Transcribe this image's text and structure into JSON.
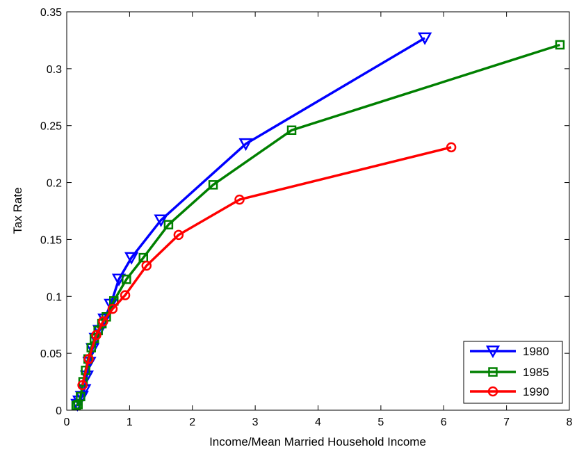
{
  "chart_data": {
    "type": "line",
    "title": "",
    "xlabel": "Income/Mean Married Household Income",
    "ylabel": "Tax Rate",
    "xlim": [
      0,
      8
    ],
    "ylim": [
      0,
      0.35
    ],
    "xticks": [
      0,
      1,
      2,
      3,
      4,
      5,
      6,
      7,
      8
    ],
    "yticks": [
      0,
      0.05,
      0.1,
      0.15,
      0.2,
      0.25,
      0.3,
      0.35
    ],
    "xtick_labels": [
      "0",
      "1",
      "2",
      "3",
      "4",
      "5",
      "6",
      "7",
      "8"
    ],
    "ytick_labels": [
      "0",
      "0.05",
      "0.1",
      "0.15",
      "0.2",
      "0.25",
      "0.3",
      "0.35"
    ],
    "grid": false,
    "legend_position": "bottom-right",
    "series": [
      {
        "name": "1980",
        "color": "#0000ff",
        "marker": "triangle-down",
        "x": [
          0.17,
          0.2,
          0.24,
          0.28,
          0.32,
          0.36,
          0.41,
          0.46,
          0.52,
          0.6,
          0.7,
          0.83,
          1.03,
          1.5,
          2.85,
          5.7
        ],
        "y": [
          0.005,
          0.008,
          0.012,
          0.018,
          0.03,
          0.042,
          0.054,
          0.063,
          0.07,
          0.08,
          0.093,
          0.115,
          0.134,
          0.167,
          0.234,
          0.327
        ]
      },
      {
        "name": "1985",
        "color": "#008000",
        "marker": "square",
        "x": [
          0.15,
          0.18,
          0.22,
          0.26,
          0.3,
          0.34,
          0.39,
          0.44,
          0.5,
          0.56,
          0.63,
          0.75,
          0.95,
          1.22,
          1.62,
          2.33,
          3.58,
          7.85
        ],
        "y": [
          0.004,
          0.005,
          0.012,
          0.025,
          0.035,
          0.045,
          0.055,
          0.063,
          0.07,
          0.076,
          0.082,
          0.096,
          0.115,
          0.134,
          0.163,
          0.198,
          0.246,
          0.321
        ]
      },
      {
        "name": "1990",
        "color": "#ff0000",
        "marker": "circle",
        "x": [
          0.25,
          0.35,
          0.47,
          0.58,
          0.73,
          0.93,
          1.27,
          1.78,
          2.75,
          6.12
        ],
        "y": [
          0.022,
          0.045,
          0.066,
          0.078,
          0.089,
          0.101,
          0.127,
          0.154,
          0.185,
          0.231
        ]
      }
    ]
  }
}
